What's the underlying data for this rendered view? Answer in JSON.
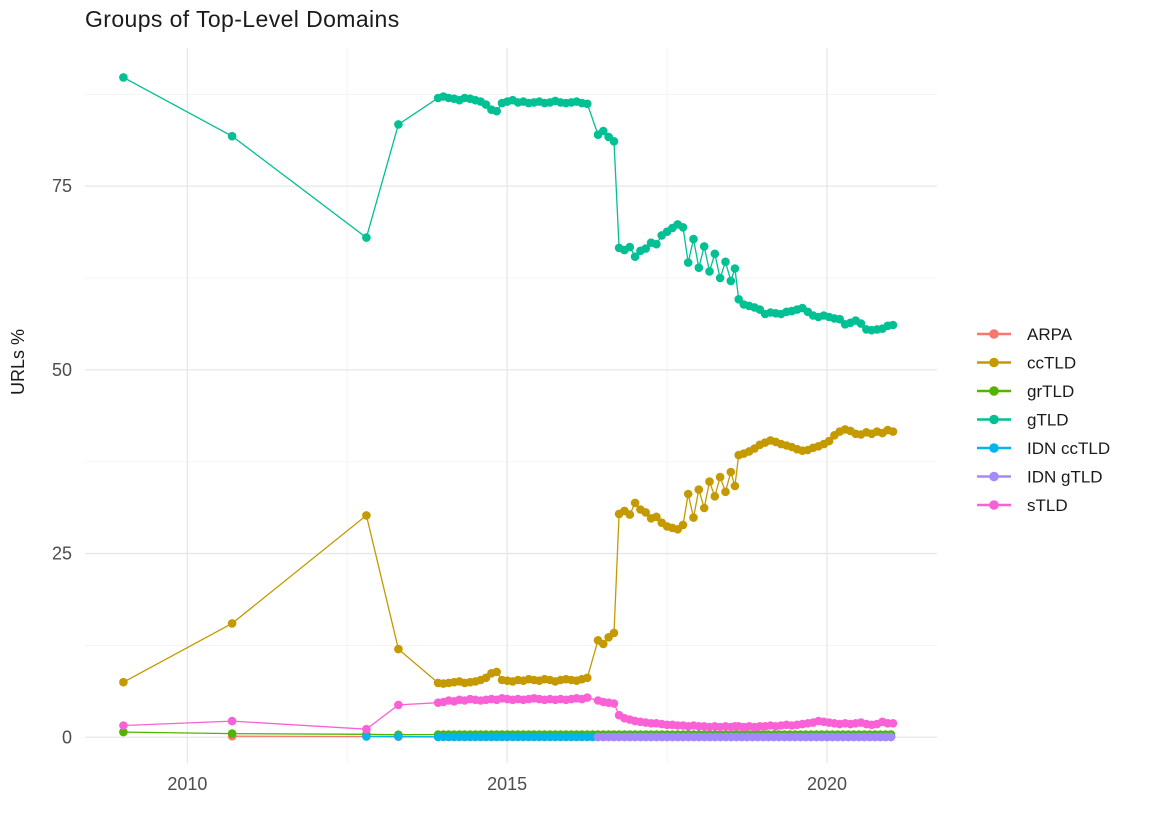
{
  "colors": {
    "background": "#ffffff",
    "title_text": "#1a1a1a",
    "axis_text": "#4d4d4d",
    "grid_major": "#e7e7e7",
    "grid_minor": "#f2f2f2"
  },
  "chart_data": {
    "type": "line",
    "title": "Groups of Top-Level Domains",
    "xlabel": "",
    "ylabel": "URLs %",
    "grid": true,
    "legend_position": "right",
    "xlim": [
      2008.4,
      2021.72
    ],
    "ylim": [
      -3.5,
      93.8
    ],
    "x_axis": {
      "ticks": [
        2010,
        2015,
        2020
      ],
      "labels": [
        "2010",
        "2015",
        "2020"
      ],
      "minor": [
        2012.5,
        2017.5
      ]
    },
    "y_axis": {
      "ticks": [
        0,
        25,
        50,
        75
      ],
      "labels": [
        "0",
        "25",
        "50",
        "75"
      ],
      "minor": [
        12.5,
        37.5,
        62.5,
        87.5
      ]
    },
    "series": [
      {
        "name": "ARPA",
        "color": "#F8766D",
        "segments": [
          {
            "pts": [
              [
                2010.7,
                0.15
              ],
              [
                2012.8,
                0.1
              ],
              [
                2013.3,
                0.08
              ]
            ]
          },
          {
            "x0": 2013.92,
            "dx": 0.0833,
            "n": 86,
            "v": 0.05
          }
        ]
      },
      {
        "name": "ccTLD",
        "color": "#C49A00",
        "segments": [
          {
            "pts": [
              [
                2009.0,
                7.5
              ],
              [
                2010.7,
                15.5
              ],
              [
                2012.8,
                30.2
              ],
              [
                2013.3,
                12.0
              ]
            ]
          },
          {
            "x0": 2013.92,
            "dx": 0.0833,
            "values": [
              7.4,
              7.3,
              7.4,
              7.5,
              7.6,
              7.4,
              7.5,
              7.6,
              7.8,
              8.1,
              8.7,
              8.9,
              7.8,
              7.7,
              7.6,
              7.8,
              7.7,
              7.9,
              7.8,
              7.7,
              7.9,
              7.8,
              7.6,
              7.8,
              7.9,
              7.8,
              7.7,
              7.9,
              8.1
            ]
          },
          {
            "x0": 2016.42,
            "dx": 0.0833,
            "values": [
              13.2,
              12.7,
              13.6,
              14.2
            ]
          },
          {
            "x0": 2016.75,
            "dx": 0.0833,
            "values": [
              30.4,
              30.8,
              30.3,
              31.9,
              31.0,
              30.6,
              29.8,
              30.0,
              29.2,
              28.7,
              28.5,
              28.3,
              28.9
            ]
          },
          {
            "x0": 2017.83,
            "dx": 0.0833,
            "values": [
              33.1,
              29.9,
              33.7,
              31.2,
              34.8,
              32.8,
              35.4,
              33.4,
              36.1
            ]
          },
          {
            "pts": [
              [
                2018.56,
                34.2
              ],
              [
                2018.62,
                38.4
              ]
            ]
          },
          {
            "x0": 2018.7,
            "dx": 0.0833,
            "values": [
              38.6,
              38.9,
              39.3,
              39.8,
              40.1,
              40.4,
              40.2,
              39.9,
              39.7,
              39.5,
              39.2,
              39.0,
              39.1,
              39.4,
              39.6,
              39.9,
              40.3,
              41.1,
              41.6,
              41.9,
              41.7,
              41.3,
              41.2,
              41.5,
              41.3,
              41.6,
              41.4,
              41.8,
              41.6
            ]
          }
        ]
      },
      {
        "name": "grTLD",
        "color": "#53B400",
        "segments": [
          {
            "pts": [
              [
                2009.0,
                0.7
              ],
              [
                2010.7,
                0.5
              ],
              [
                2012.8,
                0.4
              ],
              [
                2013.3,
                0.35
              ]
            ]
          },
          {
            "x0": 2013.92,
            "dx": 0.0833,
            "n": 86,
            "v": 0.38
          }
        ]
      },
      {
        "name": "gTLD",
        "color": "#00C094",
        "segments": [
          {
            "pts": [
              [
                2009.0,
                89.8
              ],
              [
                2010.7,
                81.8
              ],
              [
                2012.8,
                68.0
              ],
              [
                2013.3,
                83.4
              ]
            ]
          },
          {
            "x0": 2013.92,
            "dx": 0.0833,
            "values": [
              87.0,
              87.2,
              87.0,
              86.9,
              86.7,
              87.0,
              86.9,
              86.7,
              86.5,
              86.1,
              85.4,
              85.2,
              86.3,
              86.5,
              86.7,
              86.4,
              86.5,
              86.3,
              86.4,
              86.5,
              86.3,
              86.4,
              86.6,
              86.4,
              86.3,
              86.4,
              86.5,
              86.3,
              86.2
            ]
          },
          {
            "x0": 2016.42,
            "dx": 0.0833,
            "values": [
              82.0,
              82.5,
              81.7,
              81.1
            ]
          },
          {
            "x0": 2016.75,
            "dx": 0.0833,
            "values": [
              66.6,
              66.3,
              66.7,
              65.4,
              66.2,
              66.5,
              67.3,
              67.1,
              68.3,
              68.8,
              69.3,
              69.8,
              69.4
            ]
          },
          {
            "x0": 2017.83,
            "dx": 0.0833,
            "values": [
              64.6,
              67.8,
              63.9,
              66.8,
              63.4,
              65.8,
              62.5,
              64.7,
              62.1
            ]
          },
          {
            "pts": [
              [
                2018.56,
                63.8
              ],
              [
                2018.62,
                59.6
              ]
            ]
          },
          {
            "x0": 2018.7,
            "dx": 0.0833,
            "values": [
              58.9,
              58.7,
              58.5,
              58.2,
              57.6,
              57.8,
              57.7,
              57.6,
              57.9,
              58.0,
              58.2,
              58.4,
              57.9,
              57.4,
              57.2,
              57.4,
              57.2,
              57.0,
              56.9,
              56.2,
              56.4,
              56.7,
              56.3,
              55.5,
              55.4,
              55.5,
              55.6,
              56.0,
              56.1
            ]
          }
        ]
      },
      {
        "name": "IDN ccTLD",
        "color": "#00B6EB",
        "segments": [
          {
            "pts": [
              [
                2012.8,
                0.12
              ],
              [
                2013.3,
                0.1
              ]
            ]
          },
          {
            "x0": 2013.92,
            "dx": 0.0833,
            "n": 86,
            "v": 0.06
          }
        ]
      },
      {
        "name": "IDN gTLD",
        "color": "#A58AFF",
        "segments": [
          {
            "x0": 2016.42,
            "dx": 0.0833,
            "n": 56,
            "v": 0.05
          }
        ]
      },
      {
        "name": "sTLD",
        "color": "#FB61D7",
        "segments": [
          {
            "pts": [
              [
                2009.0,
                1.6
              ],
              [
                2010.7,
                2.2
              ],
              [
                2012.8,
                1.1
              ],
              [
                2013.3,
                4.4
              ]
            ]
          },
          {
            "x0": 2013.92,
            "dx": 0.0833,
            "values": [
              4.7,
              4.8,
              5.0,
              4.9,
              5.1,
              5.0,
              5.2,
              5.1,
              5.0,
              5.1,
              5.2,
              5.1,
              5.3,
              5.2,
              5.1,
              5.2,
              5.1,
              5.2,
              5.3,
              5.2,
              5.1,
              5.2,
              5.1,
              5.2,
              5.1,
              5.2,
              5.3,
              5.2,
              5.4
            ]
          },
          {
            "x0": 2016.42,
            "dx": 0.0833,
            "values": [
              5.0,
              4.8,
              4.7,
              4.6
            ]
          },
          {
            "x0": 2016.75,
            "dx": 0.0833,
            "values": [
              3.0,
              2.6,
              2.4,
              2.2,
              2.1,
              2.0,
              1.9,
              1.9,
              1.8,
              1.7,
              1.7,
              1.6,
              1.6
            ]
          },
          {
            "x0": 2017.83,
            "dx": 0.0833,
            "values": [
              1.5,
              1.6,
              1.5,
              1.5,
              1.4,
              1.5,
              1.4,
              1.5,
              1.4
            ]
          },
          {
            "pts": [
              [
                2018.56,
                1.5
              ],
              [
                2018.62,
                1.5
              ]
            ]
          },
          {
            "x0": 2018.7,
            "dx": 0.0833,
            "values": [
              1.4,
              1.5,
              1.4,
              1.5,
              1.5,
              1.6,
              1.5,
              1.6,
              1.7,
              1.6,
              1.7,
              1.8,
              1.9,
              2.0,
              2.2,
              2.1,
              2.0,
              1.9,
              1.8,
              1.9,
              1.8,
              1.9,
              2.0,
              1.8,
              1.7,
              1.8,
              2.1,
              1.9,
              1.9
            ]
          }
        ]
      }
    ]
  }
}
